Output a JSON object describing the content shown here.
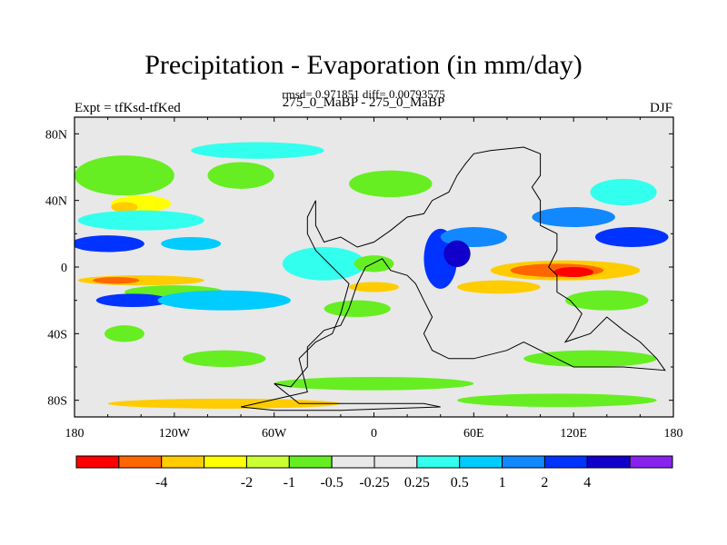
{
  "chart_data": {
    "type": "filled-contour-map",
    "title": "Precipitation - Evaporation (in mm/day)",
    "stats": "rmsd= 0.971851  diff= 0.00793575",
    "experiment": "Expt = tfKsd-tfKed",
    "case": "275_0_MaBP - 275_0_MaBP",
    "season": "DJF",
    "xlim": [
      -180,
      180
    ],
    "ylim": [
      -90,
      90
    ],
    "x_ticks": [
      {
        "value": -180,
        "label": "180"
      },
      {
        "value": -120,
        "label": "120W"
      },
      {
        "value": -60,
        "label": "60W"
      },
      {
        "value": 0,
        "label": "0"
      },
      {
        "value": 60,
        "label": "60E"
      },
      {
        "value": 120,
        "label": "120E"
      },
      {
        "value": 180,
        "label": "180"
      }
    ],
    "y_ticks": [
      {
        "value": 80,
        "label": "80N"
      },
      {
        "value": 40,
        "label": "40N"
      },
      {
        "value": 0,
        "label": "0"
      },
      {
        "value": -40,
        "label": "40S"
      },
      {
        "value": -80,
        "label": "80S"
      }
    ],
    "colorbar": {
      "colors": [
        "#ff0000",
        "#ff6600",
        "#ffcc00",
        "#ffff00",
        "#ccff33",
        "#66ee22",
        "#e8e8e8",
        "#e8e8e8",
        "#33ffee",
        "#00ccff",
        "#1188ff",
        "#0033ff",
        "#1100cc",
        "#8822ee"
      ],
      "labels": [
        "-4",
        "-2",
        "-1",
        "-0.5",
        "-0.25",
        "0.25",
        "0.5",
        "1",
        "2",
        "4"
      ],
      "label_boundaries": [
        2,
        4,
        5,
        6,
        7,
        8,
        9,
        10,
        11,
        12
      ]
    },
    "regions": [
      {
        "color": "#66ee22",
        "lon": -150,
        "lat": 55,
        "rlon": 30,
        "rlat": 12
      },
      {
        "color": "#66ee22",
        "lon": -80,
        "lat": 55,
        "rlon": 20,
        "rlat": 8
      },
      {
        "color": "#ffff00",
        "lon": -140,
        "lat": 38,
        "rlon": 18,
        "rlat": 5
      },
      {
        "color": "#ffcc00",
        "lon": -150,
        "lat": 36,
        "rlon": 8,
        "rlat": 3
      },
      {
        "color": "#33ffee",
        "lon": -140,
        "lat": 28,
        "rlon": 38,
        "rlat": 6
      },
      {
        "color": "#0033ff",
        "lon": -160,
        "lat": 14,
        "rlon": 22,
        "rlat": 5
      },
      {
        "color": "#00ccff",
        "lon": -110,
        "lat": 14,
        "rlon": 18,
        "rlat": 4
      },
      {
        "color": "#ffcc00",
        "lon": -140,
        "lat": -8,
        "rlon": 38,
        "rlat": 3
      },
      {
        "color": "#ff6600",
        "lon": -155,
        "lat": -8,
        "rlon": 14,
        "rlat": 2
      },
      {
        "color": "#66ee22",
        "lon": -120,
        "lat": -15,
        "rlon": 30,
        "rlat": 4
      },
      {
        "color": "#0033ff",
        "lon": -145,
        "lat": -20,
        "rlon": 22,
        "rlat": 4
      },
      {
        "color": "#00ccff",
        "lon": -90,
        "lat": -20,
        "rlon": 40,
        "rlat": 6
      },
      {
        "color": "#66ee22",
        "lon": -150,
        "lat": -40,
        "rlon": 12,
        "rlat": 5
      },
      {
        "color": "#66ee22",
        "lon": -90,
        "lat": -55,
        "rlon": 25,
        "rlat": 5
      },
      {
        "color": "#33ffee",
        "lon": -30,
        "lat": 2,
        "rlon": 25,
        "rlat": 10
      },
      {
        "color": "#66ee22",
        "lon": 0,
        "lat": 2,
        "rlon": 12,
        "rlat": 5
      },
      {
        "color": "#ffcc00",
        "lon": 0,
        "lat": -12,
        "rlon": 15,
        "rlat": 3
      },
      {
        "color": "#66ee22",
        "lon": -10,
        "lat": -25,
        "rlon": 20,
        "rlat": 5
      },
      {
        "color": "#0033ff",
        "lon": 40,
        "lat": 5,
        "rlon": 10,
        "rlat": 18
      },
      {
        "color": "#1188ff",
        "lon": 60,
        "lat": 18,
        "rlon": 20,
        "rlat": 6
      },
      {
        "color": "#1100cc",
        "lon": 50,
        "lat": 8,
        "rlon": 8,
        "rlat": 8
      },
      {
        "color": "#ffcc00",
        "lon": 75,
        "lat": -12,
        "rlon": 25,
        "rlat": 4
      },
      {
        "color": "#ffcc00",
        "lon": 115,
        "lat": -2,
        "rlon": 45,
        "rlat": 6
      },
      {
        "color": "#ff6600",
        "lon": 110,
        "lat": -2,
        "rlon": 28,
        "rlat": 4
      },
      {
        "color": "#ff0000",
        "lon": 120,
        "lat": -3,
        "rlon": 12,
        "rlat": 3
      },
      {
        "color": "#66ee22",
        "lon": 140,
        "lat": -20,
        "rlon": 25,
        "rlat": 6
      },
      {
        "color": "#0033ff",
        "lon": 155,
        "lat": 18,
        "rlon": 22,
        "rlat": 6
      },
      {
        "color": "#1188ff",
        "lon": 120,
        "lat": 30,
        "rlon": 25,
        "rlat": 6
      },
      {
        "color": "#33ffee",
        "lon": 150,
        "lat": 45,
        "rlon": 20,
        "rlat": 8
      },
      {
        "color": "#66ee22",
        "lon": 130,
        "lat": -55,
        "rlon": 40,
        "rlat": 5
      },
      {
        "color": "#66ee22",
        "lon": 0,
        "lat": -70,
        "rlon": 60,
        "rlat": 4
      },
      {
        "color": "#ffcc00",
        "lon": -90,
        "lat": -82,
        "rlon": 70,
        "rlat": 3
      },
      {
        "color": "#66ee22",
        "lon": 110,
        "lat": -80,
        "rlon": 60,
        "rlat": 4
      },
      {
        "color": "#66ee22",
        "lon": 10,
        "lat": 50,
        "rlon": 25,
        "rlat": 8
      },
      {
        "color": "#33ffee",
        "lon": -70,
        "lat": 70,
        "rlon": 40,
        "rlat": 5
      }
    ],
    "land_outline": [
      [
        [
          -35,
          40
        ],
        [
          -35,
          25
        ],
        [
          -30,
          15
        ],
        [
          -20,
          18
        ],
        [
          -10,
          12
        ],
        [
          0,
          15
        ],
        [
          10,
          22
        ],
        [
          20,
          30
        ],
        [
          30,
          32
        ],
        [
          35,
          40
        ],
        [
          45,
          45
        ],
        [
          50,
          55
        ],
        [
          55,
          62
        ],
        [
          60,
          68
        ],
        [
          70,
          70
        ],
        [
          90,
          72
        ],
        [
          100,
          68
        ],
        [
          100,
          55
        ],
        [
          95,
          48
        ],
        [
          100,
          40
        ],
        [
          100,
          25
        ],
        [
          110,
          20
        ],
        [
          110,
          10
        ],
        [
          105,
          0
        ],
        [
          110,
          -5
        ],
        [
          110,
          -15
        ],
        [
          118,
          -20
        ],
        [
          125,
          -28
        ],
        [
          120,
          -38
        ],
        [
          115,
          -45
        ],
        [
          130,
          -40
        ],
        [
          140,
          -30
        ],
        [
          150,
          -38
        ],
        [
          160,
          -45
        ],
        [
          170,
          -55
        ],
        [
          175,
          -62
        ],
        [
          150,
          -60
        ],
        [
          120,
          -60
        ],
        [
          110,
          -55
        ],
        [
          100,
          -50
        ],
        [
          90,
          -45
        ],
        [
          80,
          -50
        ],
        [
          60,
          -55
        ],
        [
          45,
          -55
        ],
        [
          35,
          -50
        ],
        [
          30,
          -40
        ],
        [
          35,
          -30
        ],
        [
          30,
          -20
        ],
        [
          25,
          -10
        ],
        [
          20,
          -5
        ],
        [
          10,
          -2
        ],
        [
          5,
          5
        ],
        [
          -5,
          0
        ],
        [
          -10,
          -10
        ],
        [
          -15,
          -25
        ],
        [
          -20,
          -35
        ],
        [
          -30,
          -38
        ],
        [
          -40,
          -48
        ],
        [
          -40,
          -60
        ],
        [
          -50,
          -72
        ],
        [
          -60,
          -70
        ],
        [
          -45,
          -82
        ],
        [
          -20,
          -82
        ],
        [
          0,
          -82
        ],
        [
          30,
          -82
        ],
        [
          40,
          -84
        ],
        [
          -20,
          -86
        ],
        [
          -60,
          -86
        ],
        [
          -80,
          -84
        ],
        [
          -40,
          -75
        ],
        [
          -45,
          -55
        ],
        [
          -35,
          -45
        ],
        [
          -25,
          -40
        ],
        [
          -20,
          -28
        ],
        [
          -15,
          -10
        ],
        [
          -25,
          0
        ],
        [
          -35,
          10
        ],
        [
          -40,
          20
        ],
        [
          -40,
          30
        ],
        [
          -35,
          40
        ]
      ]
    ]
  }
}
